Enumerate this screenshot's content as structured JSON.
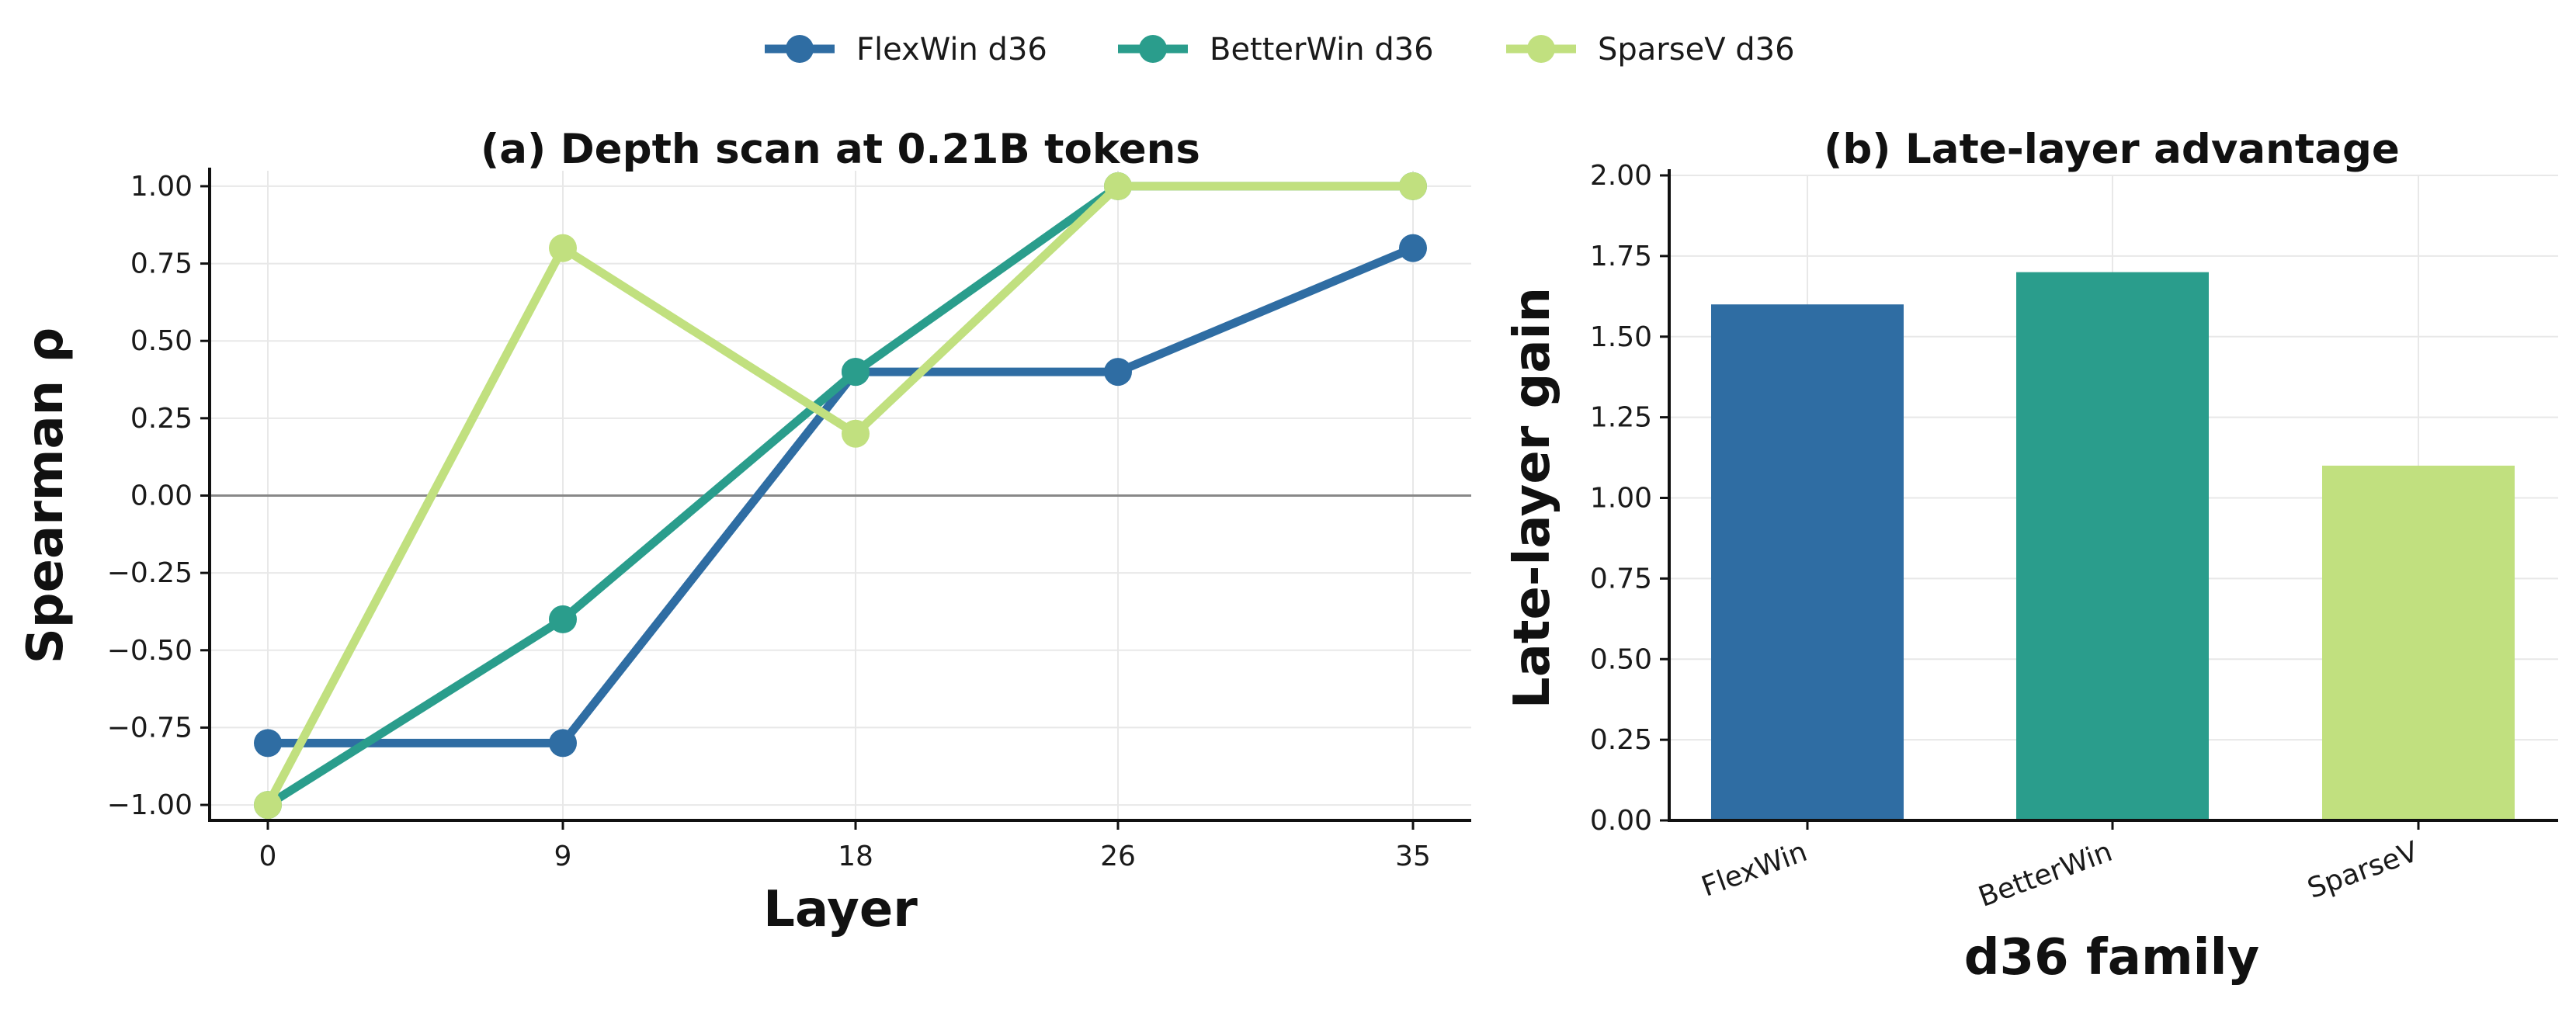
{
  "legend": {
    "entries": [
      {
        "label": "FlexWin d36",
        "color": "#2f6da3"
      },
      {
        "label": "BetterWin d36",
        "color": "#2a9d8c"
      },
      {
        "label": "SparseV d36",
        "color": "#c1e07f"
      }
    ]
  },
  "chart_data": [
    {
      "type": "line",
      "title": "(a) Depth scan at 0.21B tokens",
      "xlabel": "Layer",
      "ylabel": "Spearman ρ",
      "x": [
        "0",
        "9",
        "18",
        "26",
        "35"
      ],
      "ylim": [
        -1.05,
        1.05
      ],
      "yticks": [
        "1.00",
        "0.75",
        "0.50",
        "0.25",
        "0.00",
        "−0.25",
        "−0.50",
        "−0.75",
        "−1.00"
      ],
      "ytick_values": [
        1.0,
        0.75,
        0.5,
        0.25,
        0.0,
        -0.25,
        -0.5,
        -0.75,
        -1.0
      ],
      "grid": true,
      "reference_line": 0.0,
      "series": [
        {
          "name": "FlexWin d36",
          "color": "#2f6da3",
          "values": [
            -0.8,
            -0.8,
            0.4,
            0.4,
            0.8
          ]
        },
        {
          "name": "BetterWin d36",
          "color": "#2a9d8c",
          "values": [
            -1.0,
            -0.4,
            0.4,
            1.0,
            1.0
          ]
        },
        {
          "name": "SparseV d36",
          "color": "#c1e07f",
          "values": [
            -1.0,
            0.8,
            0.2,
            1.0,
            1.0
          ]
        }
      ]
    },
    {
      "type": "bar",
      "title": "(b) Late-layer advantage",
      "xlabel": "d36 family",
      "ylabel": "Late-layer gain",
      "categories": [
        "FlexWin",
        "BetterWin",
        "SparseV"
      ],
      "values": [
        1.6,
        1.7,
        1.1
      ],
      "colors": [
        "#2f6da3",
        "#2a9d8c",
        "#c1e07f"
      ],
      "ylim": [
        0,
        2.0
      ],
      "yticks": [
        "0.00",
        "0.25",
        "0.50",
        "0.75",
        "1.00",
        "1.25",
        "1.50",
        "1.75",
        "2.00"
      ],
      "ytick_values": [
        0,
        0.25,
        0.5,
        0.75,
        1.0,
        1.25,
        1.5,
        1.75,
        2.0
      ],
      "grid": true
    }
  ]
}
